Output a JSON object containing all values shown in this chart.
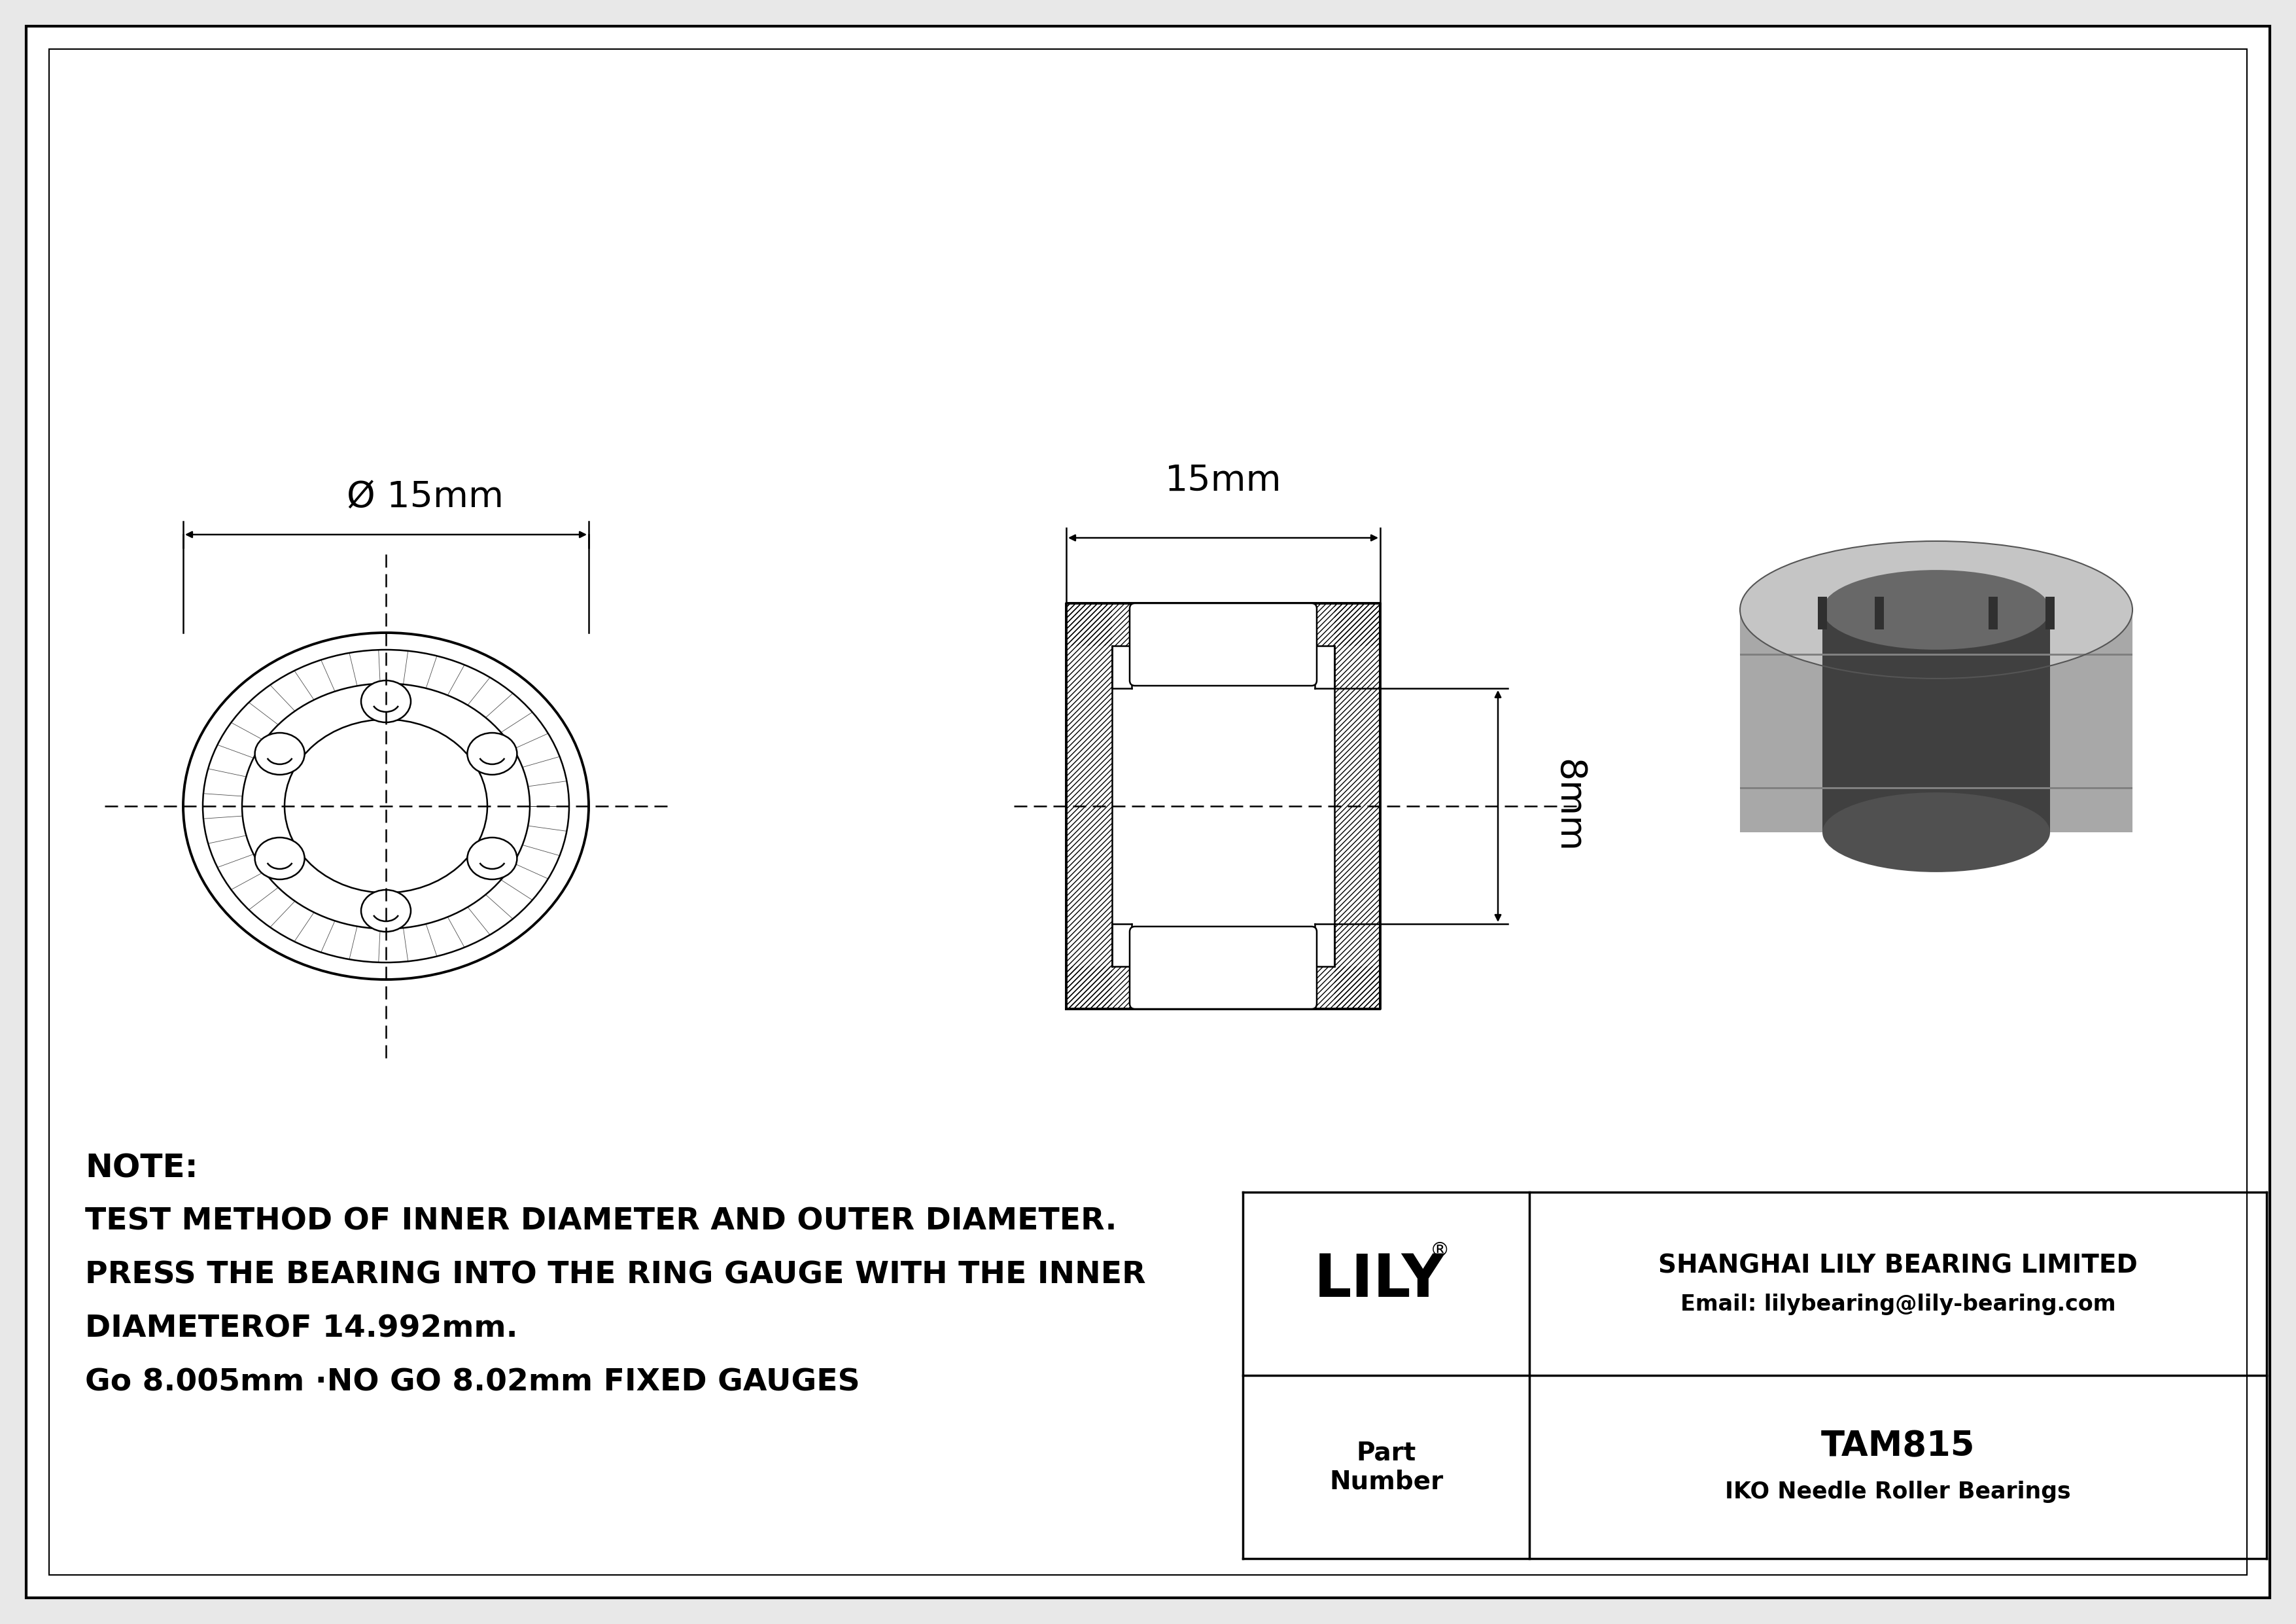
{
  "bg_color": "#e8e8e8",
  "drawing_bg": "#ffffff",
  "line_color": "#000000",
  "note_lines": [
    "NOTE:",
    "TEST METHOD OF INNER DIAMETER AND OUTER DIAMETER.",
    "PRESS THE BEARING INTO THE RING GAUGE WITH THE INNER",
    "DIAMETEROF 14.992mm.",
    "Go 8.005mm ·NO GO 8.02mm FIXED GAUGES"
  ],
  "title_block": {
    "company": "SHANGHAI LILY BEARING LIMITED",
    "email": "Email: lilybearing@lily-bearing.com",
    "part_label": "Part\nNumber",
    "part_number": "TAM815",
    "part_type": "IKO Needle Roller Bearings",
    "logo": "LILY"
  },
  "dims": {
    "outer_diameter_label": "Ø 15mm",
    "width_label": "15mm",
    "height_label": "8mm"
  }
}
